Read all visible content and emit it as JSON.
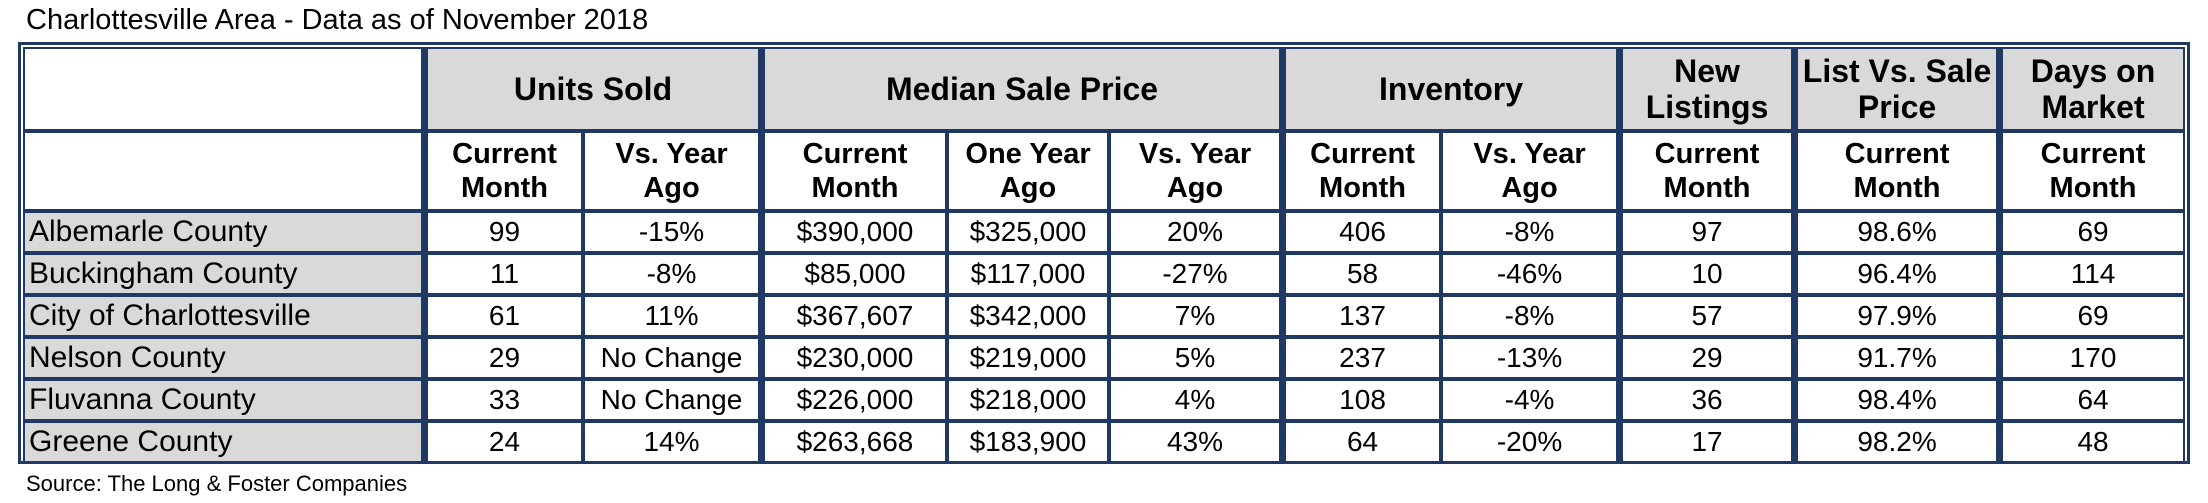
{
  "title": "Charlottesville Area - Data as of November 2018",
  "source": "Source: The Long & Foster Companies",
  "chart_data": {
    "type": "table",
    "group_headers": [
      {
        "label": "Units Sold",
        "span": 2
      },
      {
        "label": "Median Sale Price",
        "span": 3
      },
      {
        "label": "Inventory",
        "span": 2
      },
      {
        "label": "New Listings",
        "span": 1
      },
      {
        "label": "List Vs. Sale Price",
        "span": 1
      },
      {
        "label": "Days on Market",
        "span": 1
      }
    ],
    "sub_headers": [
      "Current Month",
      "Vs. Year Ago",
      "Current Month",
      "One Year Ago",
      "Vs. Year Ago",
      "Current Month",
      "Vs. Year Ago",
      "Current Month",
      "Current Month",
      "Current Month"
    ],
    "rows": [
      {
        "name": "Albemarle County",
        "values": [
          "99",
          "-15%",
          "$390,000",
          "$325,000",
          "20%",
          "406",
          "-8%",
          "97",
          "98.6%",
          "69"
        ]
      },
      {
        "name": "Buckingham County",
        "values": [
          "11",
          "-8%",
          "$85,000",
          "$117,000",
          "-27%",
          "58",
          "-46%",
          "10",
          "96.4%",
          "114"
        ]
      },
      {
        "name": "City of Charlottesville",
        "values": [
          "61",
          "11%",
          "$367,607",
          "$342,000",
          "7%",
          "137",
          "-8%",
          "57",
          "97.9%",
          "69"
        ]
      },
      {
        "name": "Nelson County",
        "values": [
          "29",
          "No Change",
          "$230,000",
          "$219,000",
          "5%",
          "237",
          "-13%",
          "29",
          "91.7%",
          "170"
        ]
      },
      {
        "name": "Fluvanna County",
        "values": [
          "33",
          "No Change",
          "$226,000",
          "$218,000",
          "4%",
          "108",
          "-4%",
          "36",
          "98.4%",
          "64"
        ]
      },
      {
        "name": "Greene County",
        "values": [
          "24",
          "14%",
          "$263,668",
          "$183,900",
          "43%",
          "64",
          "-20%",
          "17",
          "98.2%",
          "48"
        ]
      }
    ]
  }
}
